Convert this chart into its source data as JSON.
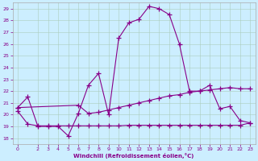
{
  "bg_color": "#cceeff",
  "grid_color": "#aaccbb",
  "line_color": "#880088",
  "xlabel": "Windchill (Refroidissement éolien,°C)",
  "xlim": [
    -0.5,
    23.5
  ],
  "ylim": [
    17.5,
    29.5
  ],
  "yticks": [
    18,
    19,
    20,
    21,
    22,
    23,
    24,
    25,
    26,
    27,
    28,
    29
  ],
  "xticks": [
    0,
    2,
    3,
    4,
    5,
    6,
    7,
    8,
    9,
    10,
    11,
    12,
    13,
    14,
    15,
    16,
    17,
    18,
    19,
    20,
    21,
    22,
    23
  ],
  "curve1_x": [
    0,
    1,
    2,
    3,
    4,
    5,
    6,
    7,
    8,
    9,
    10,
    11,
    12,
    13,
    14,
    15,
    16,
    17,
    18,
    19,
    20,
    21,
    22,
    23
  ],
  "curve1_y": [
    20.6,
    21.5,
    19.0,
    19.0,
    19.0,
    18.2,
    20.1,
    22.5,
    23.5,
    20.0,
    26.5,
    27.8,
    28.1,
    29.2,
    29.0,
    28.5,
    26.0,
    22.0,
    22.0,
    22.5,
    20.5,
    20.7,
    19.5,
    19.3
  ],
  "curve2_x": [
    0,
    6,
    7,
    8,
    9,
    10,
    11,
    12,
    13,
    14,
    15,
    16,
    17,
    18,
    19,
    20,
    21,
    22,
    23
  ],
  "curve2_y": [
    20.6,
    20.8,
    20.1,
    20.2,
    20.4,
    20.6,
    20.8,
    21.0,
    21.2,
    21.4,
    21.6,
    21.7,
    21.9,
    22.0,
    22.1,
    22.2,
    22.3,
    22.2,
    22.2
  ],
  "curve3_x": [
    0,
    1,
    2,
    3,
    4,
    5,
    6,
    7,
    8,
    9,
    10,
    11,
    12,
    13,
    14,
    15,
    16,
    17,
    18,
    19,
    20,
    21,
    22,
    23
  ],
  "curve3_y": [
    20.3,
    19.2,
    19.05,
    19.05,
    19.05,
    19.05,
    19.05,
    19.05,
    19.05,
    19.05,
    19.05,
    19.1,
    19.1,
    19.1,
    19.1,
    19.1,
    19.1,
    19.1,
    19.1,
    19.1,
    19.1,
    19.1,
    19.1,
    19.3
  ]
}
